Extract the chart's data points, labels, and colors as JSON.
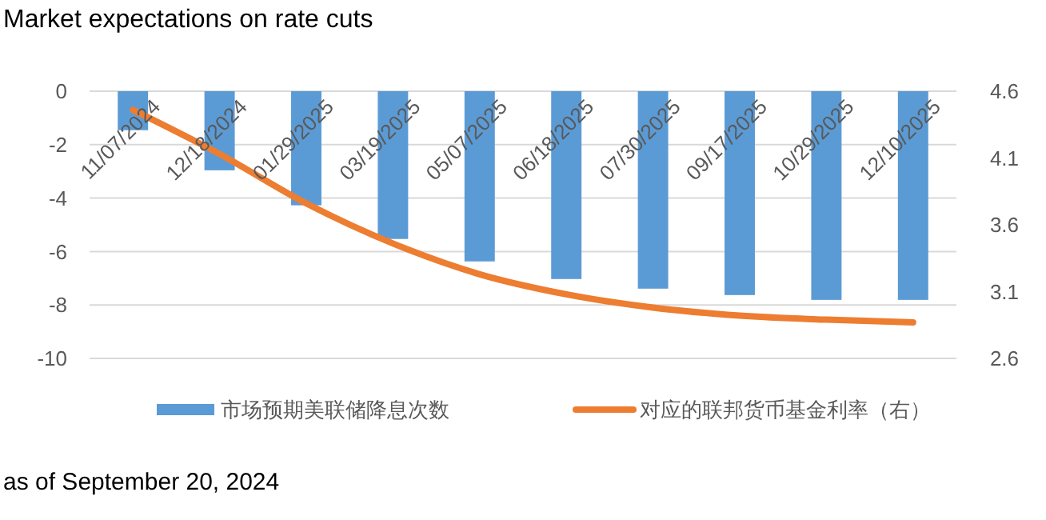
{
  "chart_data": {
    "type": "bar",
    "title": "Market expectations on rate cuts",
    "categories": [
      "11/07/2024",
      "12/18/2024",
      "01/29/2025",
      "03/19/2025",
      "05/07/2025",
      "06/18/2025",
      "07/30/2025",
      "09/17/2025",
      "10/29/2025",
      "12/10/2025"
    ],
    "series": [
      {
        "name": "市场预期美联储降息次数",
        "color": "#5b9bd5",
        "values": [
          -1.46,
          -2.96,
          -4.27,
          -5.53,
          -6.37,
          -7.03,
          -7.39,
          -7.63,
          -7.81,
          -7.81
        ]
      },
      {
        "name": "对应的联邦货币基金利率（右）",
        "type": "line",
        "axis": "y2",
        "color": "#ed7d31",
        "values": [
          4.46,
          4.13,
          3.76,
          3.46,
          3.23,
          3.08,
          2.98,
          2.92,
          2.89,
          2.87
        ]
      }
    ],
    "ylim": [
      -10,
      0
    ],
    "yticks": [
      0,
      -2,
      -4,
      -6,
      -8,
      -10
    ],
    "y2lim": [
      2.6,
      4.6
    ],
    "y2ticks": [
      4.6,
      4.1,
      3.6,
      3.1,
      2.6
    ],
    "grid": "y",
    "legend": "bottom",
    "marker": "none",
    "line_style": "solid",
    "annotations": [
      "as of September 20, 2024"
    ]
  }
}
